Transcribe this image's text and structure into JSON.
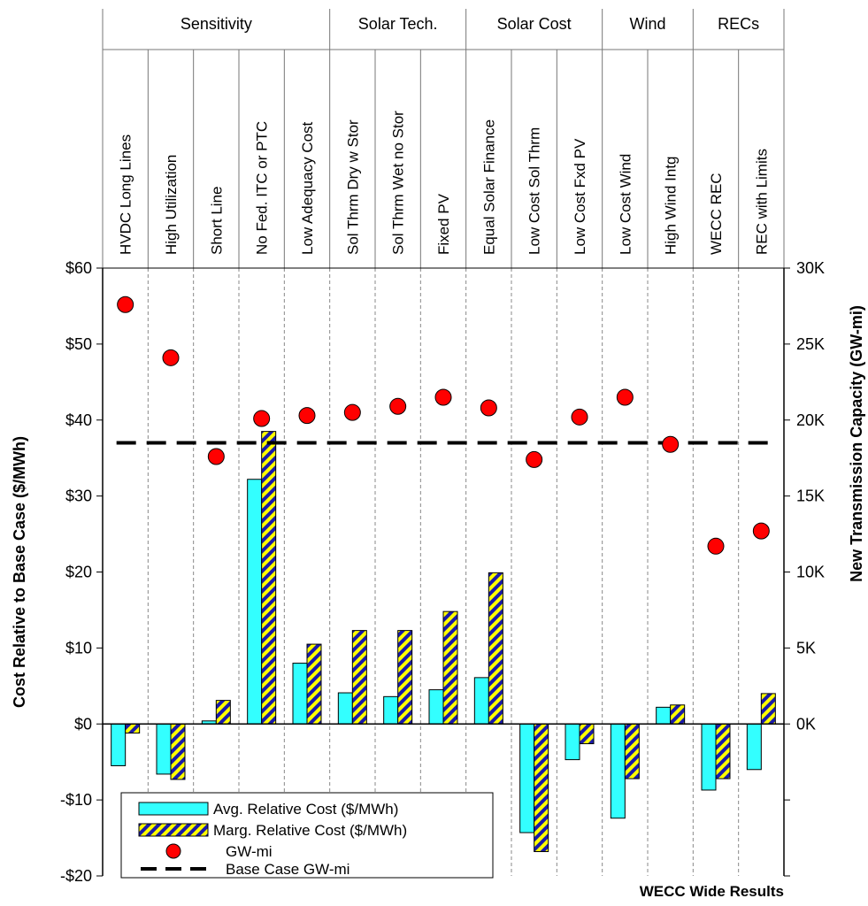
{
  "chart_data": {
    "type": "bar",
    "footer_title": "WECC Wide Results",
    "groups": [
      {
        "label": "Sensitivity",
        "count": 5
      },
      {
        "label": "Solar Tech.",
        "count": 3
      },
      {
        "label": "Solar Cost",
        "count": 3
      },
      {
        "label": "Wind",
        "count": 2
      },
      {
        "label": "RECs",
        "count": 2
      }
    ],
    "categories": [
      "HVDC Long Lines",
      "High Utilization",
      "Short Line",
      "No Fed. ITC or PTC",
      "Low Adequacy Cost",
      "Sol Thrm Dry w Stor",
      "Sol Thrm Wet no Stor",
      "Fixed PV",
      "Equal Solar Finance",
      "Low Cost Sol Thrm",
      "Low Cost Fxd PV",
      "Low Cost Wind",
      "High Wind Intg",
      "WECC REC",
      "REC with Limits"
    ],
    "series": [
      {
        "name": "Avg. Relative Cost ($/MWh)",
        "axis": "left",
        "color": "#33ffff",
        "values": [
          -5.5,
          -6.6,
          0.4,
          32.2,
          8.0,
          4.1,
          3.6,
          4.5,
          6.1,
          -14.3,
          -4.7,
          -12.4,
          2.2,
          -8.7,
          -6.0
        ]
      },
      {
        "name": "Marg. Relative Cost ($/MWh)",
        "axis": "left",
        "color": "#ffff00",
        "values": [
          -1.2,
          -7.3,
          3.1,
          38.5,
          10.5,
          12.3,
          12.3,
          14.8,
          19.9,
          -16.8,
          -2.6,
          -7.2,
          2.5,
          -7.2,
          4.0
        ]
      },
      {
        "name": "GW-mi",
        "axis": "right",
        "color": "#ff0000",
        "values": [
          27600,
          24100,
          17600,
          20100,
          20300,
          20500,
          20900,
          21500,
          20800,
          17400,
          20200,
          21500,
          18400,
          11700,
          12700
        ]
      },
      {
        "name": "Base Case GW-mi",
        "axis": "right",
        "value": 18500,
        "style": "dashed"
      }
    ],
    "yaxis_left": {
      "label": "Cost Relative to Base Case ($/MWh)",
      "range": [
        -20,
        60
      ],
      "ticks": [
        60,
        50,
        40,
        30,
        20,
        10,
        0,
        -10,
        -20
      ],
      "tick_labels": [
        "$60",
        "$50",
        "$40",
        "$30",
        "$20",
        "$10",
        "$0",
        "-$10",
        "-$20"
      ]
    },
    "yaxis_right": {
      "label": "New Transmission Capacity (GW-mi)",
      "range": [
        -10000,
        30000
      ],
      "ticks": [
        30000,
        25000,
        20000,
        15000,
        10000,
        5000,
        0
      ],
      "tick_labels": [
        "30K",
        "25K",
        "20K",
        "15K",
        "10K",
        "5K",
        "0K"
      ]
    },
    "legend_position": "bottom-left"
  }
}
